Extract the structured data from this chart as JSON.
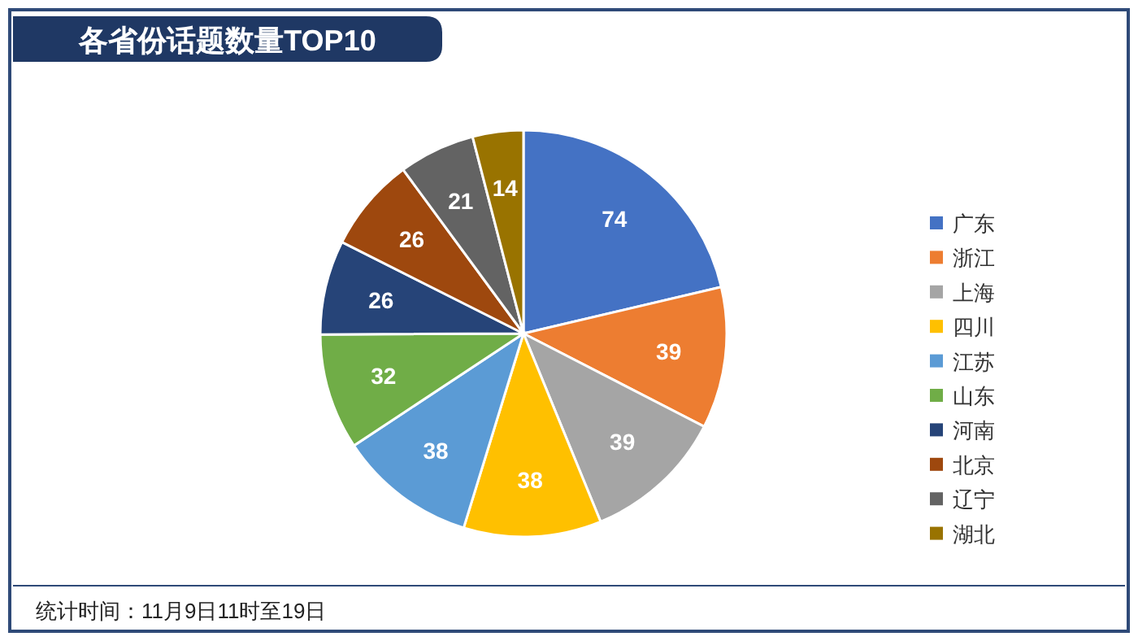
{
  "chart_data": {
    "type": "pie",
    "title": "各省份话题数量TOP10",
    "categories": [
      "广东",
      "浙江",
      "上海",
      "四川",
      "江苏",
      "山东",
      "河南",
      "北京",
      "辽宁",
      "湖北"
    ],
    "values": [
      74,
      39,
      39,
      38,
      38,
      32,
      26,
      26,
      21,
      14
    ],
    "colors": [
      "#4472c4",
      "#ed7d31",
      "#a5a5a5",
      "#ffc000",
      "#5b9bd5",
      "#70ad47",
      "#264478",
      "#9e480e",
      "#636363",
      "#997300"
    ],
    "data_labels": true,
    "legend": "right",
    "annotations": [
      "统计时间：11月9日11时至19日"
    ]
  }
}
